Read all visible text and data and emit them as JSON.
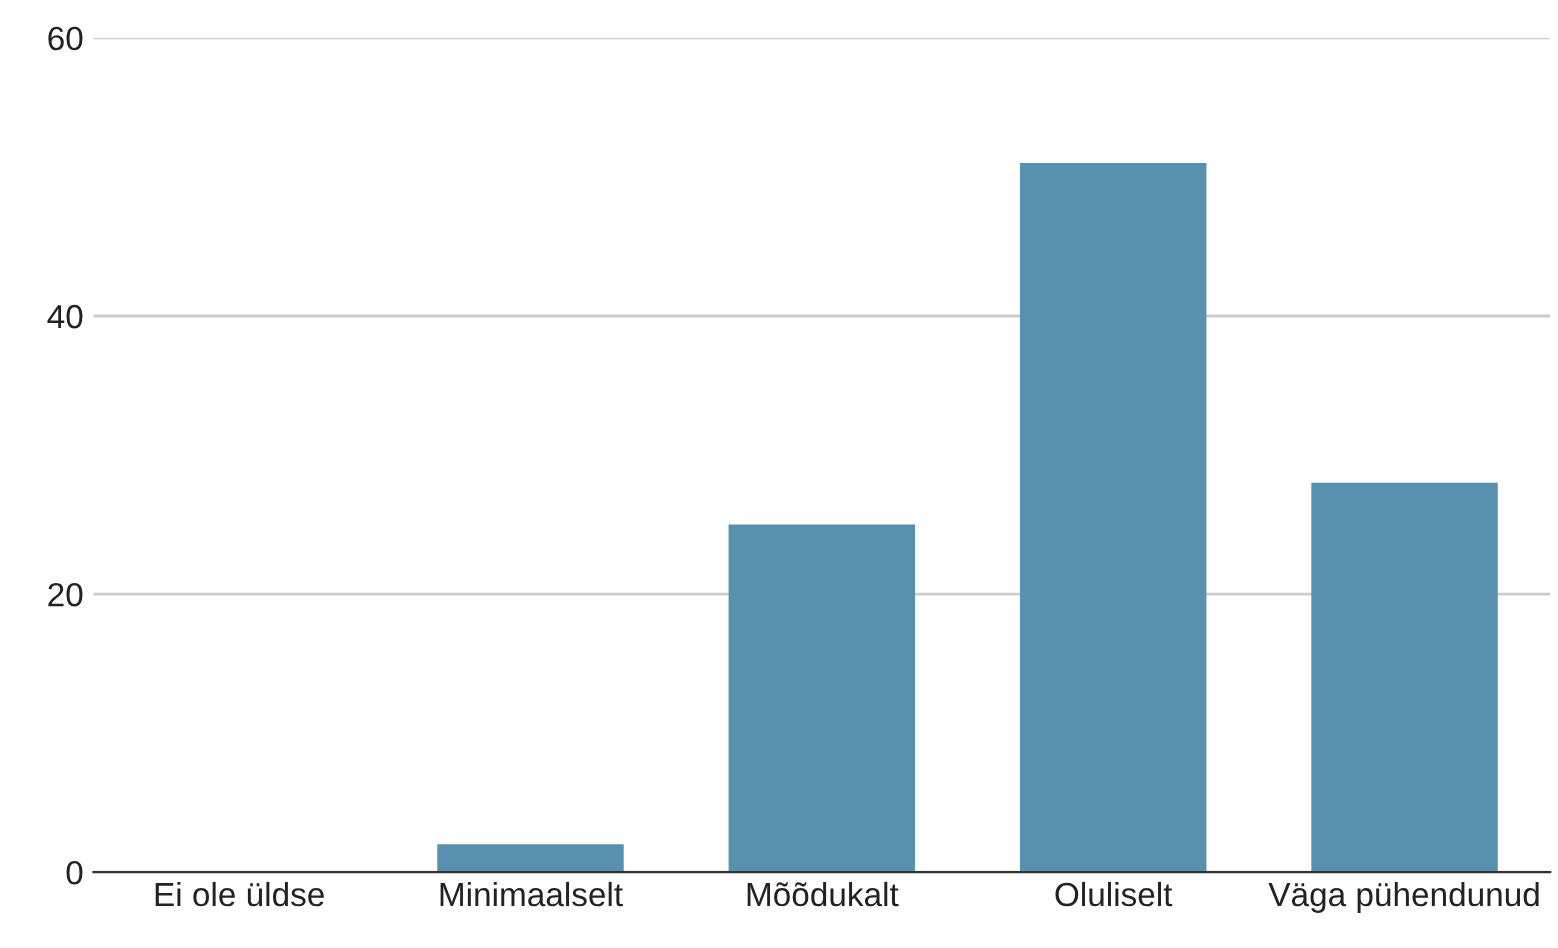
{
  "chart_data": {
    "type": "bar",
    "categories": [
      "Ei ole üldse",
      "Minimaalselt",
      "Mõõdukalt",
      "Oluliselt",
      "Väga pühendunud"
    ],
    "values": [
      0,
      2,
      25,
      51,
      28
    ],
    "color": "#5891ad",
    "ylim": [
      0,
      60
    ],
    "yticks": [
      0,
      20,
      40,
      60
    ],
    "grid": "y"
  }
}
